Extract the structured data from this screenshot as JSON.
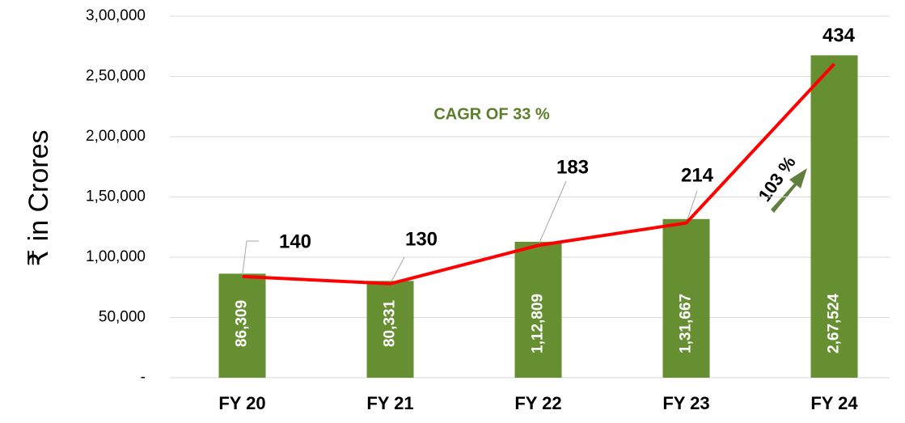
{
  "chart_data": {
    "type": "bar",
    "ylabel": "₹ in Crores",
    "categories": [
      "FY 20",
      "FY 21",
      "FY 22",
      "FY 23",
      "FY 24"
    ],
    "series": [
      {
        "type": "bar",
        "color": "#668f32",
        "values": [
          86309,
          80331,
          112809,
          131667,
          267524
        ],
        "value_labels": [
          "86,309",
          "80,331",
          "1,12,809",
          "1,31,667",
          "2,67,524"
        ]
      },
      {
        "type": "line",
        "axis": "y2",
        "color": "#ff0000",
        "values": [
          140,
          130,
          183,
          214,
          434
        ]
      }
    ],
    "ylim": [
      0,
      300000
    ],
    "yticks": [
      {
        "value": 0,
        "label": "-"
      },
      {
        "value": 50000,
        "label": "50,000"
      },
      {
        "value": 100000,
        "label": "1,00,000"
      },
      {
        "value": 150000,
        "label": "1,50,000"
      },
      {
        "value": 200000,
        "label": "2,00,000"
      },
      {
        "value": 250000,
        "label": "2,50,000"
      },
      {
        "value": 300000,
        "label": "3,00,000"
      }
    ],
    "y2lim": [
      0,
      500
    ],
    "grid": true,
    "annotations": [
      "CAGR OF 33 %",
      "103 %"
    ]
  }
}
